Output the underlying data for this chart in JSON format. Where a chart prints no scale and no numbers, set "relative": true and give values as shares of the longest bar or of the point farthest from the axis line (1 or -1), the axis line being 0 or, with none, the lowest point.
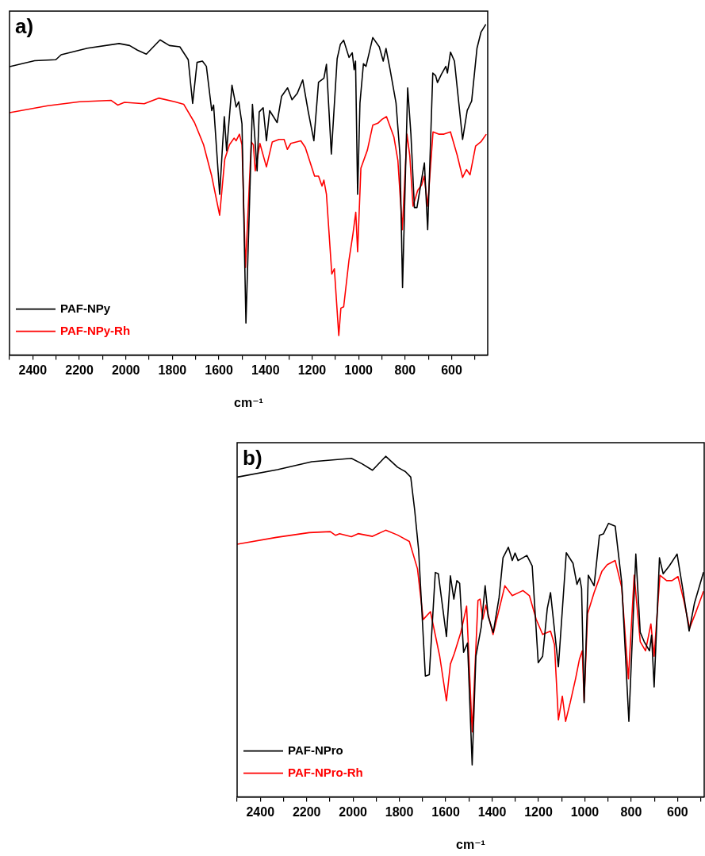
{
  "chart_data": [
    {
      "type": "line",
      "title": "a)",
      "xlabel": "cm⁻¹",
      "relative": true,
      "marker": "none",
      "legend": "bottom left",
      "tick_labels": "x",
      "xlim": [
        2500,
        445
      ],
      "xticks": [
        {
          "value": 2500,
          "label": null
        },
        2400,
        {
          "value": 2300,
          "label": null
        },
        2200,
        {
          "value": 2100,
          "label": null
        },
        2000,
        {
          "value": 1900,
          "label": null
        },
        1800,
        {
          "value": 1700,
          "label": null
        },
        1600,
        {
          "value": 1500,
          "label": null
        },
        1400,
        {
          "value": 1300,
          "label": null
        },
        1200,
        {
          "value": 1100,
          "label": null
        },
        1000,
        {
          "value": 900,
          "label": null
        },
        800,
        {
          "value": 700,
          "label": null
        },
        600,
        {
          "value": 500,
          "label": null
        }
      ],
      "series": [
        {
          "name": "PAF-NPy",
          "color": "#000000",
          "x": [
            2500,
            2392,
            2301,
            2278,
            2165,
            2029,
            1984,
            1950,
            1912,
            1853,
            1813,
            1768,
            1732,
            1713,
            1694,
            1671,
            1654,
            1631,
            1623,
            1597,
            1577,
            1567,
            1544,
            1526,
            1515,
            1501,
            1484,
            1456,
            1444,
            1436,
            1427,
            1410,
            1396,
            1382,
            1350,
            1331,
            1305,
            1286,
            1263,
            1240,
            1217,
            1192,
            1172,
            1149,
            1138,
            1117,
            1092,
            1078,
            1064,
            1041,
            1027,
            1019,
            1013,
            1004,
            994,
            979,
            968,
            939,
            911,
            894,
            882,
            865,
            839,
            822,
            811,
            789,
            775,
            760,
            749,
            724,
            717,
            703,
            681,
            669,
            661,
            644,
            625,
            618,
            605,
            588,
            553,
            533,
            514,
            491,
            474,
            453
          ],
          "values": [
            0.872,
            0.89,
            0.893,
            0.908,
            0.928,
            0.942,
            0.936,
            0.922,
            0.91,
            0.953,
            0.936,
            0.932,
            0.893,
            0.761,
            0.885,
            0.889,
            0.873,
            0.739,
            0.756,
            0.486,
            0.721,
            0.618,
            0.816,
            0.75,
            0.766,
            0.699,
            0.097,
            0.758,
            0.64,
            0.557,
            0.735,
            0.748,
            0.648,
            0.739,
            0.703,
            0.782,
            0.808,
            0.772,
            0.792,
            0.832,
            0.739,
            0.648,
            0.825,
            0.837,
            0.879,
            0.608,
            0.896,
            0.94,
            0.952,
            0.9,
            0.914,
            0.863,
            0.889,
            0.486,
            0.762,
            0.881,
            0.873,
            0.96,
            0.932,
            0.889,
            0.927,
            0.865,
            0.762,
            0.604,
            0.204,
            0.808,
            0.668,
            0.446,
            0.446,
            0.553,
            0.581,
            0.379,
            0.853,
            0.845,
            0.824,
            0.849,
            0.873,
            0.853,
            0.916,
            0.889,
            0.652,
            0.74,
            0.768,
            0.928,
            0.976,
            1
          ]
        },
        {
          "name": "PAF-NPy-Rh",
          "color": "#ff0000",
          "x": [
            2500,
            2335,
            2199,
            2063,
            2035,
            2006,
            1921,
            1859,
            1790,
            1751,
            1705,
            1666,
            1631,
            1597,
            1575,
            1555,
            1535,
            1526,
            1512,
            1501,
            1486,
            1461,
            1452,
            1444,
            1424,
            1396,
            1371,
            1342,
            1320,
            1306,
            1291,
            1248,
            1229,
            1189,
            1172,
            1157,
            1149,
            1138,
            1115,
            1104,
            1085,
            1076,
            1064,
            1041,
            1024,
            1012,
            1004,
            990,
            962,
            939,
            917,
            899,
            880,
            848,
            831,
            812,
            792,
            780,
            766,
            746,
            729,
            718,
            703,
            680,
            656,
            633,
            605,
            576,
            553,
            536,
            521,
            497,
            474,
            451
          ],
          "values": [
            0.733,
            0.754,
            0.766,
            0.77,
            0.756,
            0.764,
            0.76,
            0.777,
            0.766,
            0.758,
            0.703,
            0.636,
            0.541,
            0.423,
            0.592,
            0.636,
            0.656,
            0.648,
            0.668,
            0.636,
            0.265,
            0.644,
            0.636,
            0.557,
            0.64,
            0.569,
            0.644,
            0.652,
            0.652,
            0.622,
            0.64,
            0.648,
            0.628,
            0.541,
            0.541,
            0.511,
            0.529,
            0.486,
            0.245,
            0.261,
            0.059,
            0.142,
            0.146,
            0.288,
            0.367,
            0.432,
            0.312,
            0.565,
            0.62,
            0.695,
            0.701,
            0.713,
            0.721,
            0.659,
            0.588,
            0.379,
            0.668,
            0.604,
            0.45,
            0.498,
            0.514,
            0.541,
            0.45,
            0.675,
            0.668,
            0.668,
            0.675,
            0.604,
            0.537,
            0.561,
            0.545,
            0.632,
            0.645,
            0.668
          ]
        }
      ]
    },
    {
      "type": "line",
      "title": "b)",
      "xlabel": "cm⁻¹",
      "relative": true,
      "marker": "none",
      "legend": "bottom left",
      "tick_labels": "x",
      "xlim": [
        2500,
        485
      ],
      "xticks": [
        {
          "value": 2500,
          "label": null
        },
        2400,
        {
          "value": 2300,
          "label": null
        },
        2200,
        {
          "value": 2100,
          "label": null
        },
        2000,
        {
          "value": 1900,
          "label": null
        },
        1800,
        {
          "value": 1700,
          "label": null
        },
        1600,
        {
          "value": 1500,
          "label": null
        },
        1400,
        {
          "value": 1300,
          "label": null
        },
        1200,
        {
          "value": 1100,
          "label": null
        },
        1000,
        {
          "value": 900,
          "label": null
        },
        800,
        {
          "value": 700,
          "label": null
        },
        600,
        {
          "value": 500,
          "label": null
        }
      ],
      "series": [
        {
          "name": "PAF-NPro",
          "color": "#000000",
          "x": [
            2499,
            2326,
            2178,
            2007,
            1961,
            1916,
            1859,
            1808,
            1774,
            1751,
            1734,
            1717,
            1688,
            1671,
            1645,
            1632,
            1597,
            1580,
            1565,
            1552,
            1540,
            1523,
            1506,
            1486,
            1470,
            1447,
            1430,
            1417,
            1395,
            1370,
            1353,
            1330,
            1313,
            1301,
            1288,
            1250,
            1227,
            1201,
            1182,
            1162,
            1148,
            1114,
            1080,
            1051,
            1034,
            1022,
            1014,
            1003,
            985,
            960,
            937,
            920,
            898,
            869,
            841,
            810,
            780,
            761,
            744,
            721,
            712,
            701,
            678,
            662,
            636,
            602,
            575,
            550,
            527,
            488
          ],
          "values": [
            0.939,
            0.961,
            0.984,
            0.994,
            0.978,
            0.959,
            1,
            0.968,
            0.955,
            0.939,
            0.842,
            0.725,
            0.355,
            0.359,
            0.659,
            0.655,
            0.471,
            0.649,
            0.581,
            0.635,
            0.627,
            0.425,
            0.452,
            0.094,
            0.413,
            0.499,
            0.62,
            0.53,
            0.483,
            0.585,
            0.702,
            0.733,
            0.694,
            0.716,
            0.694,
            0.709,
            0.678,
            0.394,
            0.413,
            0.553,
            0.6,
            0.382,
            0.717,
            0.686,
            0.624,
            0.643,
            0.612,
            0.277,
            0.651,
            0.62,
            0.768,
            0.772,
            0.803,
            0.795,
            0.631,
            0.222,
            0.713,
            0.483,
            0.456,
            0.429,
            0.475,
            0.323,
            0.702,
            0.655,
            0.678,
            0.713,
            0.6,
            0.487,
            0.569,
            0.66
          ]
        },
        {
          "name": "PAF-NPro-Rh",
          "color": "#ff0000",
          "x": [
            2500,
            2331,
            2189,
            2098,
            2075,
            2058,
            2007,
            1978,
            1916,
            1859,
            1808,
            1757,
            1722,
            1697,
            1666,
            1626,
            1597,
            1580,
            1563,
            1535,
            1510,
            1486,
            1461,
            1452,
            1440,
            1427,
            1396,
            1370,
            1345,
            1313,
            1288,
            1267,
            1239,
            1210,
            1182,
            1148,
            1131,
            1114,
            1097,
            1083,
            1063,
            1040,
            1023,
            1011,
            1003,
            988,
            960,
            926,
            903,
            869,
            841,
            812,
            787,
            761,
            738,
            715,
            701,
            676,
            647,
            624,
            598,
            573,
            548,
            519,
            488
          ],
          "values": [
            0.742,
            0.762,
            0.776,
            0.779,
            0.768,
            0.773,
            0.764,
            0.773,
            0.765,
            0.783,
            0.769,
            0.75,
            0.67,
            0.521,
            0.544,
            0.413,
            0.282,
            0.39,
            0.421,
            0.483,
            0.56,
            0.191,
            0.577,
            0.581,
            0.522,
            0.563,
            0.477,
            0.55,
            0.62,
            0.591,
            0.599,
            0.606,
            0.591,
            0.522,
            0.477,
            0.487,
            0.448,
            0.226,
            0.296,
            0.222,
            0.277,
            0.347,
            0.405,
            0.429,
            0.281,
            0.538,
            0.6,
            0.663,
            0.682,
            0.694,
            0.616,
            0.347,
            0.651,
            0.456,
            0.429,
            0.508,
            0.413,
            0.651,
            0.635,
            0.635,
            0.647,
            0.577,
            0.495,
            0.546,
            0.604
          ]
        }
      ]
    }
  ]
}
